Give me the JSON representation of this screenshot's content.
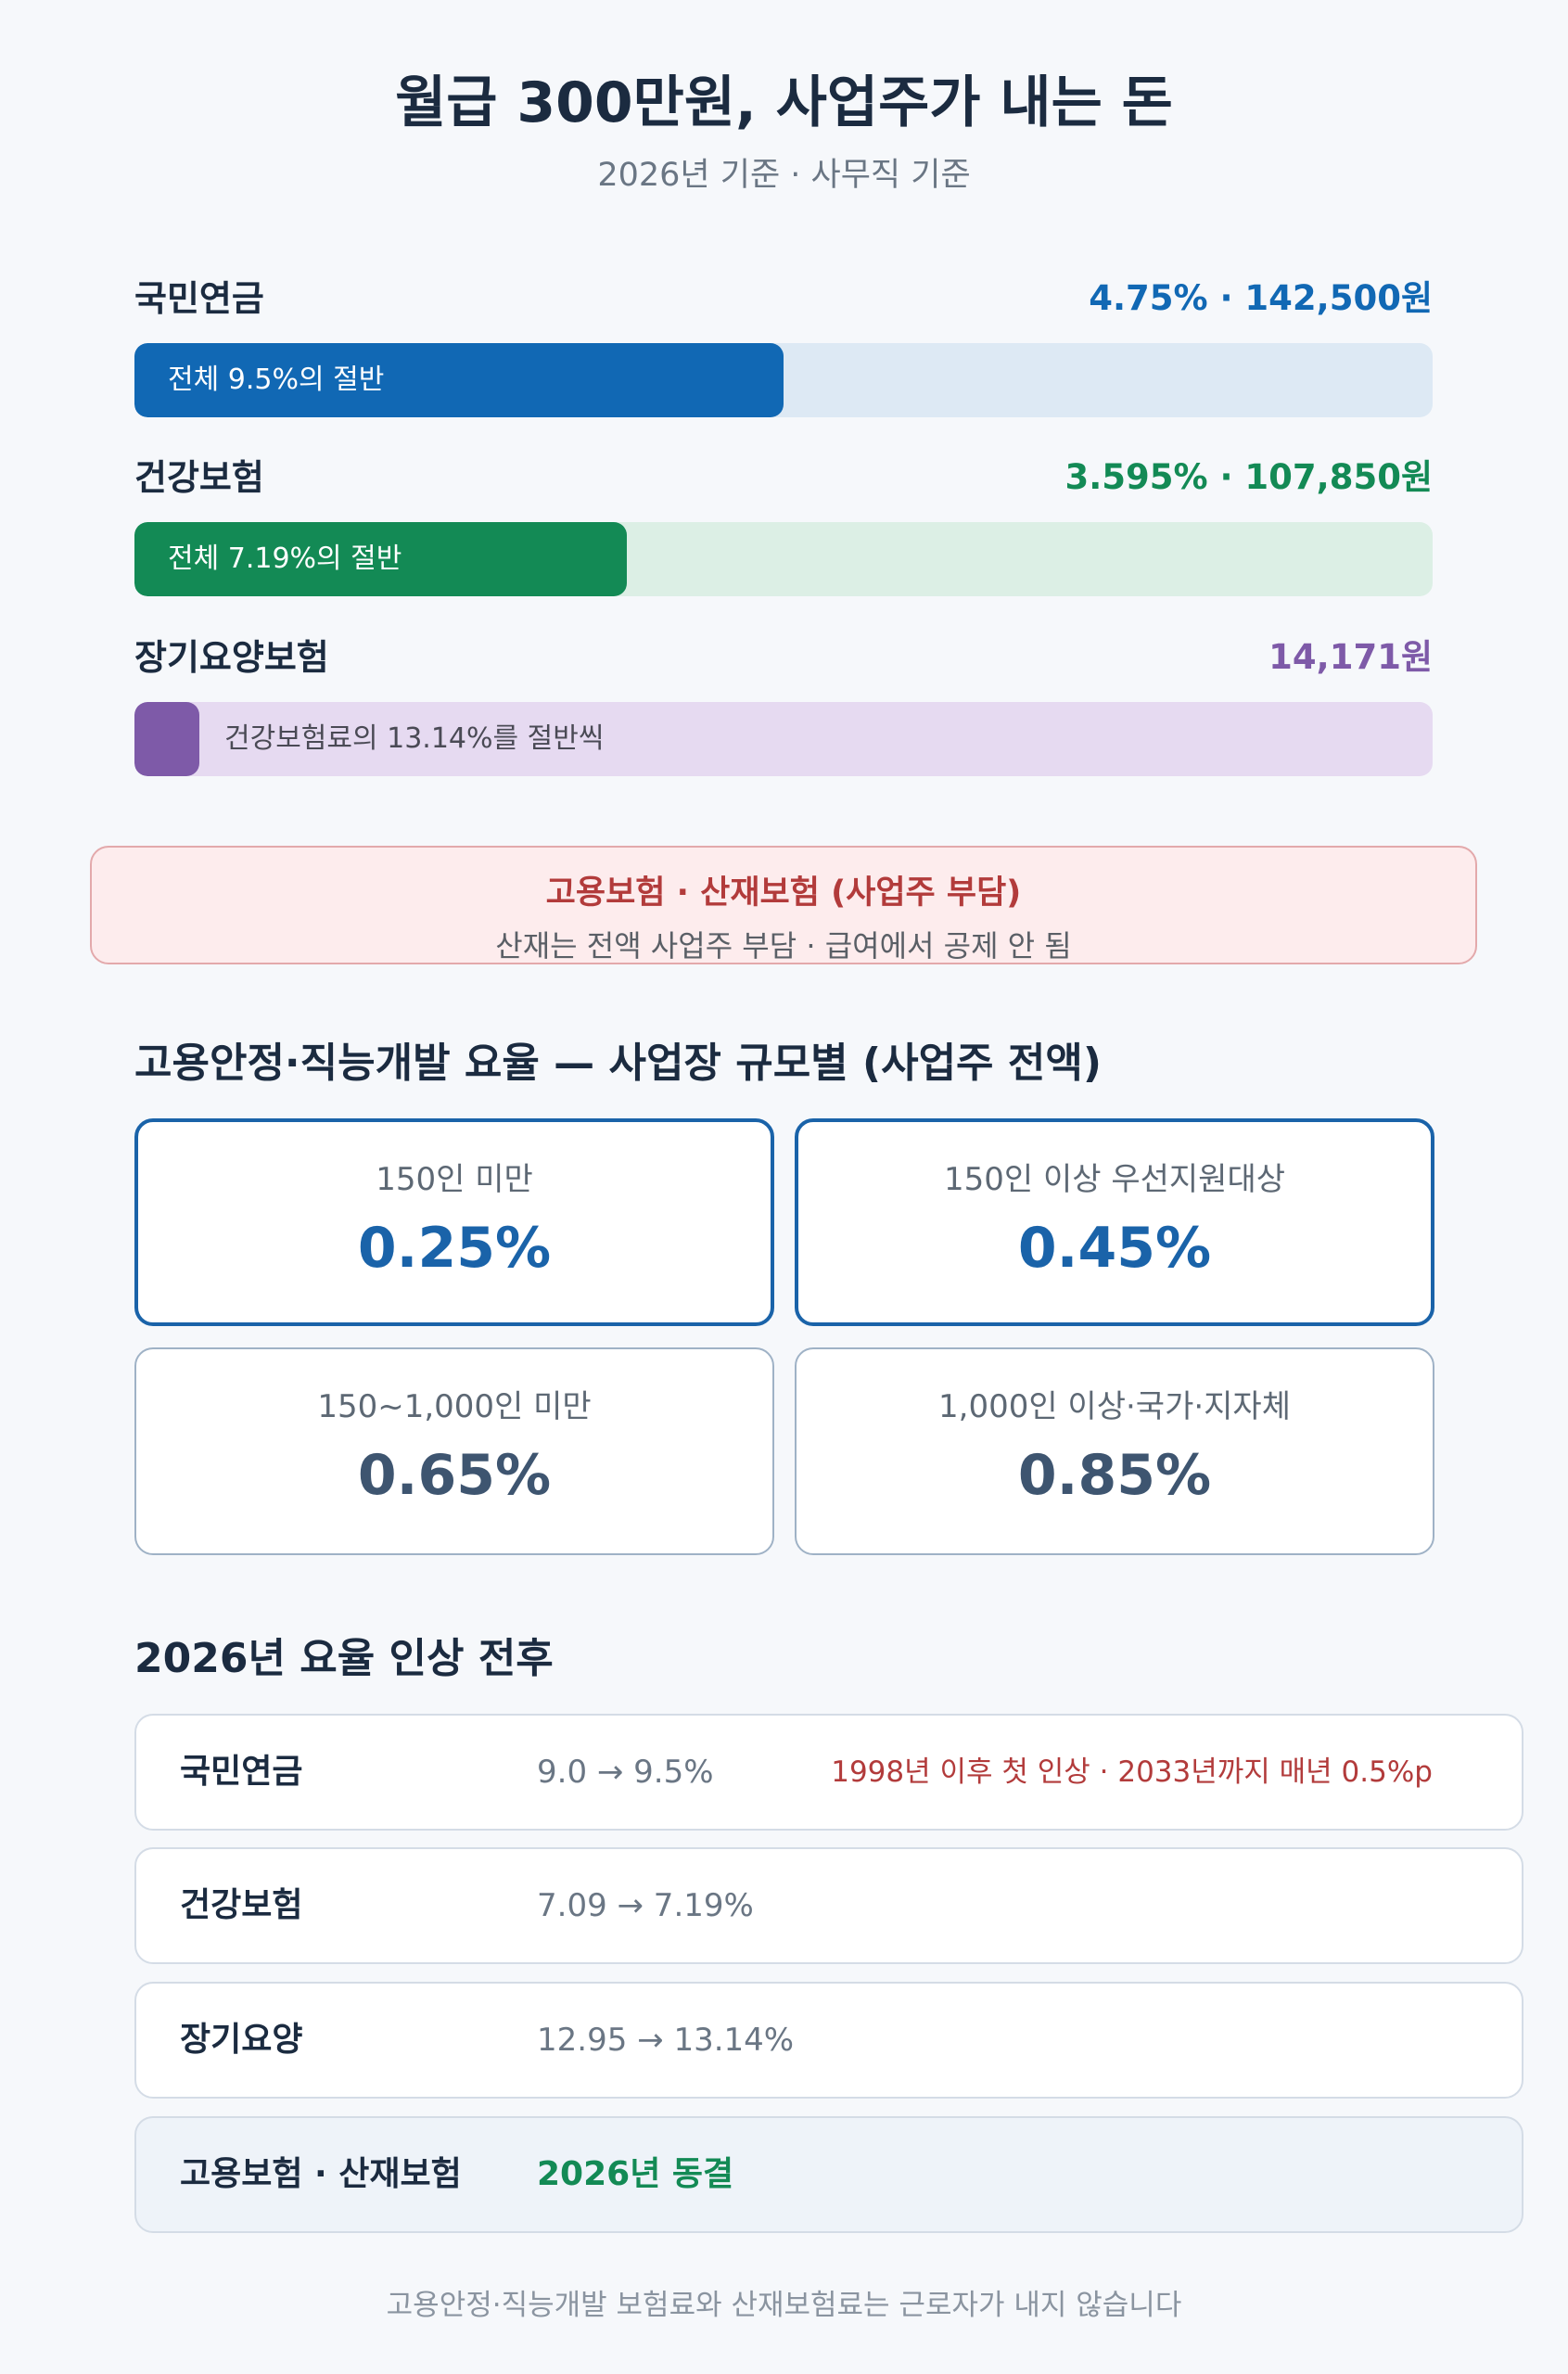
{
  "header": {
    "title": "월급 300만원, 사업주가 내는 돈",
    "subtitle": "2026년 기준 · 사무직 기준"
  },
  "insurances": [
    {
      "name": "국민연금",
      "value": "4.75% · 142,500원",
      "bar_label": "전체 9.5%의 절반",
      "fill_fraction": 0.5,
      "color": "#1168b4",
      "track_color": "#dde9f4"
    },
    {
      "name": "건강보험",
      "value": "3.595% · 107,850원",
      "bar_label": "전체 7.19%의 절반",
      "fill_fraction": 0.38,
      "color": "#138a55",
      "track_color": "#dcefe5"
    },
    {
      "name": "장기요양보험",
      "value": "14,171원",
      "bar_label": "건강보험료의 13.14%를 절반씩",
      "fill_fraction": 0.05,
      "color": "#7e5aa8",
      "track_color": "#e6daf1"
    }
  ],
  "notice": {
    "title": "고용보험 · 산재보험 (사업주 부담)",
    "subtitle": "산재는 전액 사업주 부담 · 급여에서 공제 안 됨"
  },
  "rates": {
    "title": "고용안정·직능개발 요율 — 사업장 규모별 (사업주 전액)",
    "cards": [
      {
        "label": "150인 미만",
        "value": "0.25%",
        "highlight": true
      },
      {
        "label": "150인 이상 우선지원대상",
        "value": "0.45%",
        "highlight": true
      },
      {
        "label": "150~1,000인 미만",
        "value": "0.65%",
        "highlight": false
      },
      {
        "label": "1,000인 이상·국가·지자체",
        "value": "0.85%",
        "highlight": false
      }
    ]
  },
  "comparison": {
    "title": "2026년 요율 인상 전후",
    "rows": [
      {
        "name": "국민연금",
        "change": "9.0 → 9.5%",
        "note": "1998년 이후 첫 인상 · 2033년까지 매년 0.5%p"
      },
      {
        "name": "건강보험",
        "change": "7.09 → 7.19%",
        "note": ""
      },
      {
        "name": "장기요양",
        "change": "12.95 → 13.14%",
        "note": ""
      },
      {
        "name": "고용보험 · 산재보험",
        "frozen": "2026년 동결"
      }
    ]
  },
  "footer": "고용안정·직능개발 보험료와 산재보험료는 근로자가 내지 않습니다",
  "colors": {
    "pension": "#1168b4",
    "health": "#138a55",
    "care": "#7e5aa8",
    "alert": "#b23b3b",
    "rate_highlight": "#1a63a9",
    "rate_normal": "#3e5570"
  }
}
